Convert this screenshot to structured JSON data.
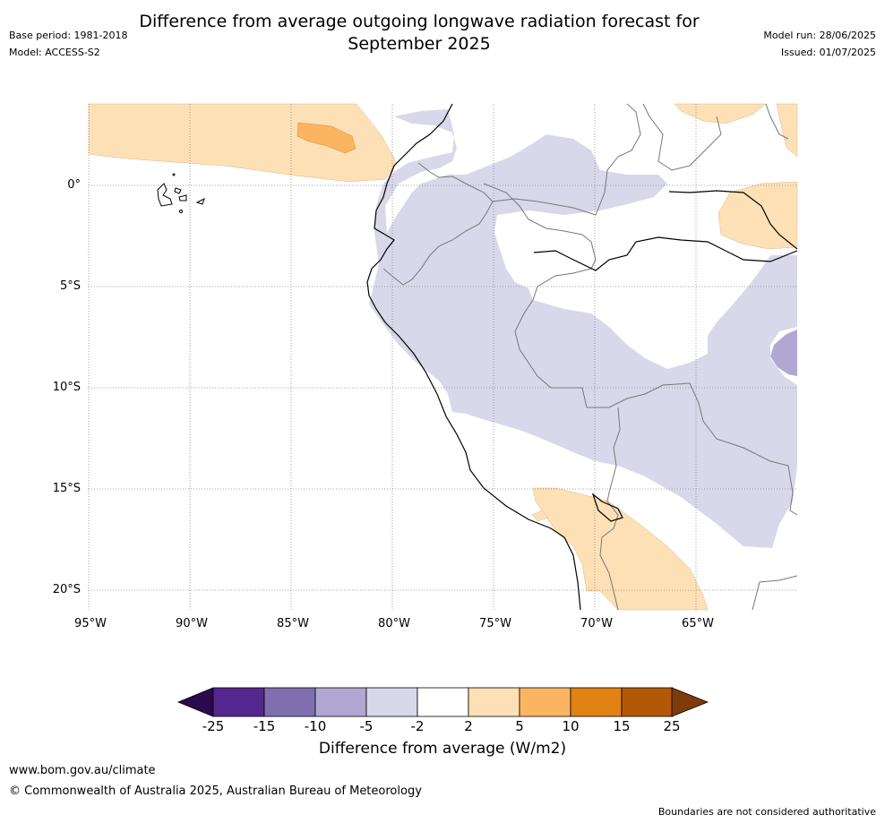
{
  "header": {
    "title_line1": "Difference from average outgoing longwave radiation forecast for",
    "title_line2": "September 2025",
    "base_period": "Base period: 1981-2018",
    "model": "Model: ACCESS-S2",
    "model_run": "Model run: 28/06/2025",
    "issued": "Issued: 01/07/2025"
  },
  "map": {
    "lat_labels": [
      "0°",
      "5°S",
      "10°S",
      "15°S",
      "20°S"
    ],
    "lon_labels": [
      "95°W",
      "90°W",
      "85°W",
      "80°W",
      "75°W",
      "70°W",
      "65°W"
    ],
    "grid": "dotted"
  },
  "colorbar": {
    "ticks": [
      "-25",
      "-15",
      "-10",
      "-5",
      "-2",
      "2",
      "5",
      "10",
      "15",
      "25"
    ],
    "colors": [
      "#2d0a4e",
      "#54278f",
      "#7f6fae",
      "#b0a8d2",
      "#d8d8ea",
      "#ffffff",
      "#fde0b5",
      "#fbb560",
      "#e08214",
      "#b35806",
      "#7f3b08"
    ],
    "title": "Difference from average (W/m2)"
  },
  "footer": {
    "url": "www.bom.gov.au/climate",
    "copyright": "© Commonwealth of Australia 2025, Australian Bureau of Meteorology",
    "disclaimer": "Boundaries are not considered authoritative"
  }
}
